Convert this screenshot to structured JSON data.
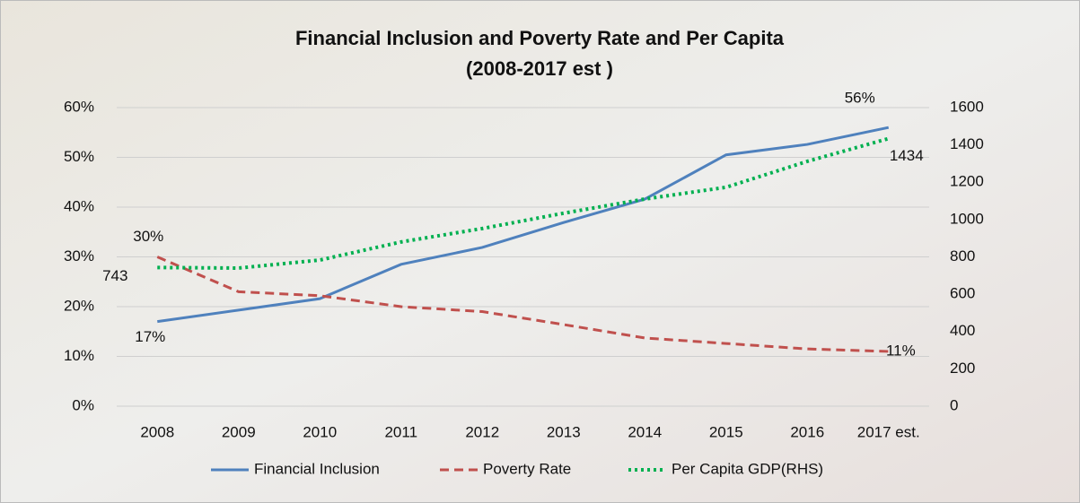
{
  "chart_data": {
    "type": "line",
    "title": "Financial Inclusion and Poverty Rate and Per Capita",
    "subtitle": "(2008-2017 est )",
    "categories": [
      "2008",
      "2009",
      "2010",
      "2011",
      "2012",
      "2013",
      "2014",
      "2015",
      "2016",
      "2017 est."
    ],
    "series": [
      {
        "name": "Financial Inclusion",
        "color": "#4f81bd",
        "dash": "solid",
        "values": [
          17,
          19.3,
          21.6,
          28.5,
          31.9,
          36.9,
          41.6,
          50.5,
          52.6,
          56
        ],
        "value_labels": [
          "17%",
          null,
          null,
          null,
          null,
          null,
          null,
          null,
          null,
          "56%"
        ]
      },
      {
        "name": "Poverty Rate",
        "color": "#c0504d",
        "dash": "dashed",
        "values": [
          30,
          23,
          22.2,
          20,
          19,
          16.4,
          13.7,
          12.6,
          11.5,
          11
        ],
        "value_labels": [
          "30%",
          null,
          null,
          null,
          null,
          null,
          null,
          null,
          null,
          "11%"
        ]
      },
      {
        "name": "Per Capita GDP(RHS)",
        "color": "#00b050",
        "dash": "dotted",
        "axis": "y2",
        "values": [
          743,
          740,
          783,
          880,
          952,
          1034,
          1110,
          1173,
          1312,
          1434
        ],
        "value_labels": [
          "743",
          null,
          null,
          null,
          null,
          null,
          null,
          null,
          null,
          "1434"
        ]
      }
    ],
    "ylim": [
      0,
      60
    ],
    "yticks": [
      {
        "value": 0,
        "label": "0%"
      },
      {
        "value": 10,
        "label": "10%"
      },
      {
        "value": 20,
        "label": "20%"
      },
      {
        "value": 30,
        "label": "30%"
      },
      {
        "value": 40,
        "label": "40%"
      },
      {
        "value": 50,
        "label": "50%"
      },
      {
        "value": 60,
        "label": "60%"
      }
    ],
    "y2lim": [
      0,
      1600
    ],
    "y2ticks": [
      0,
      200,
      400,
      600,
      800,
      1000,
      1200,
      1400,
      1600
    ],
    "grid": true,
    "legend": "bottom"
  }
}
